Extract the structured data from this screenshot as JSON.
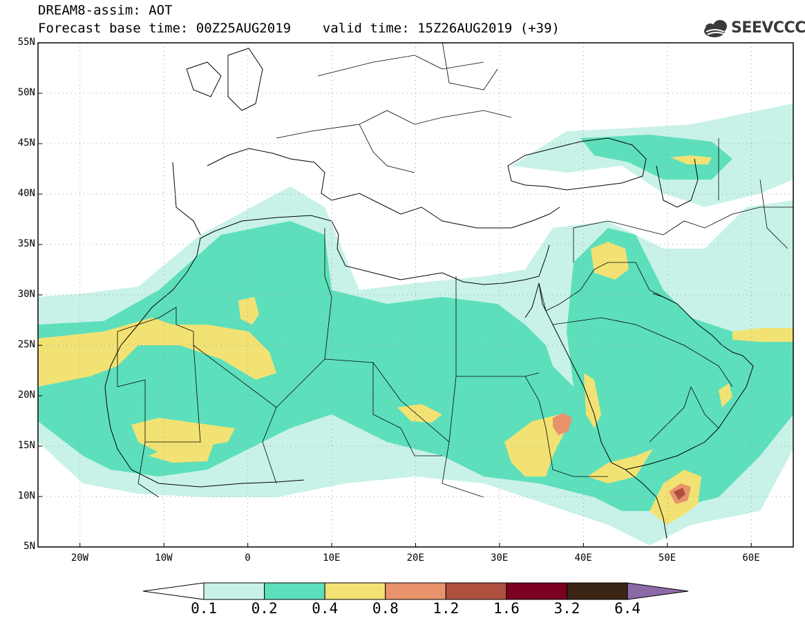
{
  "header": {
    "title_line1": "DREAM8-assim: AOT",
    "title_line2": "Forecast base time: 00Z25AUG2019    valid time: 15Z26AUG2019 (+39)"
  },
  "logo": {
    "text": "SEEVCCC",
    "icon": "cloud-icon"
  },
  "map": {
    "lon_range": [
      -25,
      65
    ],
    "lat_range": [
      5,
      55
    ],
    "lat_ticks": [
      {
        "value": 55,
        "label": "55N"
      },
      {
        "value": 50,
        "label": "50N"
      },
      {
        "value": 45,
        "label": "45N"
      },
      {
        "value": 40,
        "label": "40N"
      },
      {
        "value": 35,
        "label": "35N"
      },
      {
        "value": 30,
        "label": "30N"
      },
      {
        "value": 25,
        "label": "25N"
      },
      {
        "value": 20,
        "label": "20N"
      },
      {
        "value": 15,
        "label": "15N"
      },
      {
        "value": 10,
        "label": "10N"
      },
      {
        "value": 5,
        "label": "5N"
      }
    ],
    "lon_ticks": [
      {
        "value": -20,
        "label": "20W"
      },
      {
        "value": -10,
        "label": "10W"
      },
      {
        "value": 0,
        "label": "0"
      },
      {
        "value": 10,
        "label": "10E"
      },
      {
        "value": 20,
        "label": "20E"
      },
      {
        "value": 30,
        "label": "30E"
      },
      {
        "value": 40,
        "label": "40E"
      },
      {
        "value": 50,
        "label": "50E"
      },
      {
        "value": 60,
        "label": "60E"
      }
    ],
    "grid": true
  },
  "colorbar": {
    "levels": [
      "0.1",
      "0.2",
      "0.4",
      "0.8",
      "1.2",
      "1.6",
      "3.2",
      "6.4"
    ],
    "colors": [
      "#ffffff",
      "#c8f2e8",
      "#5ddfbb",
      "#f2e274",
      "#e8936b",
      "#ae4f3f",
      "#7c0020",
      "#3a2414",
      "#8c6aa8"
    ]
  }
}
